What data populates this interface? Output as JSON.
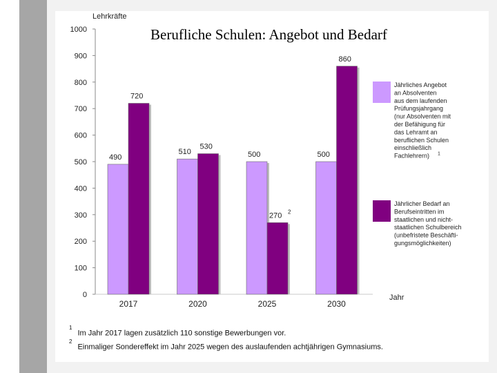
{
  "slide": {
    "title": "Berufliche Schulen: Angebot und Bedarf"
  },
  "chart_data": {
    "type": "bar",
    "title": "Berufliche Schulen: Angebot und Bedarf",
    "ylabel": "Lehrkräfte",
    "xlabel": "Jahr",
    "ylim": [
      0,
      1000
    ],
    "yticks": [
      0,
      100,
      200,
      300,
      400,
      500,
      600,
      700,
      800,
      900,
      1000
    ],
    "grid": false,
    "legend_position": "right",
    "categories": [
      "2017",
      "2020",
      "2025",
      "2030"
    ],
    "series": [
      {
        "name": "Jährliches Angebot an Absolventen aus dem laufenden Prüfungsjahrgang (nur Absolventen mit der Befähigung für das Lehramt an beruflichen Schulen einschließlich Fachlehrern)",
        "legend_lines": [
          "Jährliches Angebot",
          "an Absolventen",
          "aus dem laufenden",
          "Prüfungsjahrgang",
          "(nur Absolventen mit",
          "der Befähigung für",
          "das Lehramt an",
          "beruflichen Schulen",
          "einschließlich",
          "Fachlehrern)"
        ],
        "legend_sup": "1",
        "color": "#cc99ff",
        "values": [
          490,
          510,
          500,
          500
        ],
        "labels": [
          "490",
          "510",
          "500",
          "500"
        ]
      },
      {
        "name": "Jährlicher Bedarf an Berufseintritten im staatlichen und nichtstaatlichen Schulbereich (unbefristete Beschäftigungsmöglichkeiten)",
        "legend_lines": [
          "Jährlicher Bedarf an",
          "Berufseintritten im",
          "staatlichen und nicht-",
          "staatlichen Schulbereich",
          "(unbefristete Beschäfti-",
          "gungsmöglichkeiten)"
        ],
        "legend_sup": "",
        "color": "#800080",
        "values": [
          720,
          530,
          270,
          860
        ],
        "labels": [
          "720",
          "530",
          "270",
          "860"
        ],
        "label_sups": [
          "",
          "",
          "2",
          ""
        ]
      }
    ]
  },
  "footnotes": [
    {
      "marker": "1",
      "text": "Im Jahr 2017 lagen zusätzlich 110 sonstige Bewerbungen vor."
    },
    {
      "marker": "2",
      "text": "Einmaliger Sondereffekt im Jahr 2025 wegen des auslaufenden achtjährigen Gymnasiums."
    }
  ]
}
